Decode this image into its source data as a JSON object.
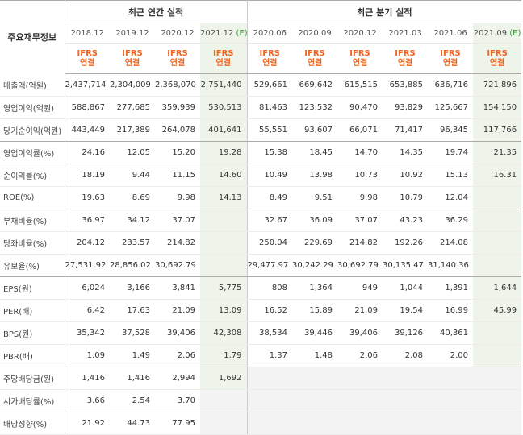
{
  "corner_label": "주요재무정보",
  "annual_title": "최근 연간 실적",
  "quarter_title": "최근 분기 실적",
  "columns": [
    {
      "date": "2018.12",
      "est": "",
      "ifrs1": "IFRS",
      "ifrs2": "연결"
    },
    {
      "date": "2019.12",
      "est": "",
      "ifrs1": "IFRS",
      "ifrs2": "연결"
    },
    {
      "date": "2020.12",
      "est": "",
      "ifrs1": "IFRS",
      "ifrs2": "연결"
    },
    {
      "date": "2021.12",
      "est": "(E)",
      "ifrs1": "IFRS",
      "ifrs2": "연결"
    },
    {
      "date": "2020.06",
      "est": "",
      "ifrs1": "IFRS",
      "ifrs2": "연결"
    },
    {
      "date": "2020.09",
      "est": "",
      "ifrs1": "IFRS",
      "ifrs2": "연결"
    },
    {
      "date": "2020.12",
      "est": "",
      "ifrs1": "IFRS",
      "ifrs2": "연결"
    },
    {
      "date": "2021.03",
      "est": "",
      "ifrs1": "IFRS",
      "ifrs2": "연결"
    },
    {
      "date": "2021.06",
      "est": "",
      "ifrs1": "IFRS",
      "ifrs2": "연결"
    },
    {
      "date": "2021.09",
      "est": "(E)",
      "ifrs1": "IFRS",
      "ifrs2": "연결"
    }
  ],
  "rows": [
    {
      "label": "매출액(억원)",
      "values": [
        "2,437,714",
        "2,304,009",
        "2,368,070",
        "2,751,440",
        "529,661",
        "669,642",
        "615,515",
        "653,885",
        "636,716",
        "721,896"
      ]
    },
    {
      "label": "영업이익(억원)",
      "values": [
        "588,867",
        "277,685",
        "359,939",
        "530,513",
        "81,463",
        "123,532",
        "90,470",
        "93,829",
        "125,667",
        "154,150"
      ]
    },
    {
      "label": "당기순이익(억원)",
      "values": [
        "443,449",
        "217,389",
        "264,078",
        "401,641",
        "55,551",
        "93,607",
        "66,071",
        "71,417",
        "96,345",
        "117,766"
      ]
    },
    {
      "label": "영업이익률(%)",
      "values": [
        "24.16",
        "12.05",
        "15.20",
        "19.28",
        "15.38",
        "18.45",
        "14.70",
        "14.35",
        "19.74",
        "21.35"
      ]
    },
    {
      "label": "순이익률(%)",
      "values": [
        "18.19",
        "9.44",
        "11.15",
        "14.60",
        "10.49",
        "13.98",
        "10.73",
        "10.92",
        "15.13",
        "16.31"
      ]
    },
    {
      "label": "ROE(%)",
      "values": [
        "19.63",
        "8.69",
        "9.98",
        "14.13",
        "8.49",
        "9.51",
        "9.98",
        "10.79",
        "12.04",
        ""
      ]
    },
    {
      "label": "부채비율(%)",
      "values": [
        "36.97",
        "34.12",
        "37.07",
        "",
        "32.67",
        "36.09",
        "37.07",
        "43.23",
        "36.29",
        ""
      ]
    },
    {
      "label": "당좌비율(%)",
      "values": [
        "204.12",
        "233.57",
        "214.82",
        "",
        "250.04",
        "229.69",
        "214.82",
        "192.26",
        "214.08",
        ""
      ]
    },
    {
      "label": "유보율(%)",
      "values": [
        "27,531.92",
        "28,856.02",
        "30,692.79",
        "",
        "29,477.97",
        "30,242.29",
        "30,692.79",
        "30,135.47",
        "31,140.36",
        ""
      ]
    },
    {
      "label": "EPS(원)",
      "values": [
        "6,024",
        "3,166",
        "3,841",
        "5,775",
        "808",
        "1,364",
        "949",
        "1,044",
        "1,391",
        "1,644"
      ]
    },
    {
      "label": "PER(배)",
      "values": [
        "6.42",
        "17.63",
        "21.09",
        "13.09",
        "16.52",
        "15.89",
        "21.09",
        "19.54",
        "16.99",
        "45.99"
      ]
    },
    {
      "label": "BPS(원)",
      "values": [
        "35,342",
        "37,528",
        "39,406",
        "42,308",
        "38,534",
        "39,446",
        "39,406",
        "39,126",
        "40,361",
        ""
      ]
    },
    {
      "label": "PBR(배)",
      "values": [
        "1.09",
        "1.49",
        "2.06",
        "1.79",
        "1.37",
        "1.48",
        "2.06",
        "2.08",
        "2.00",
        ""
      ]
    },
    {
      "label": "주당배당금(원)",
      "values": [
        "1,416",
        "1,416",
        "2,994",
        "1,692",
        "",
        "",
        "",
        "",
        "",
        ""
      ]
    },
    {
      "label": "시가배당률(%)",
      "values": [
        "3.66",
        "2.54",
        "3.70",
        "",
        "",
        "",
        "",
        "",
        "",
        ""
      ]
    },
    {
      "label": "배당성향(%)",
      "values": [
        "21.92",
        "44.73",
        "77.95",
        "",
        "",
        "",
        "",
        "",
        "",
        ""
      ]
    }
  ],
  "group_end_rows": [
    2,
    5,
    8,
    12
  ],
  "empty_gray_rows": [
    13,
    14,
    15
  ]
}
